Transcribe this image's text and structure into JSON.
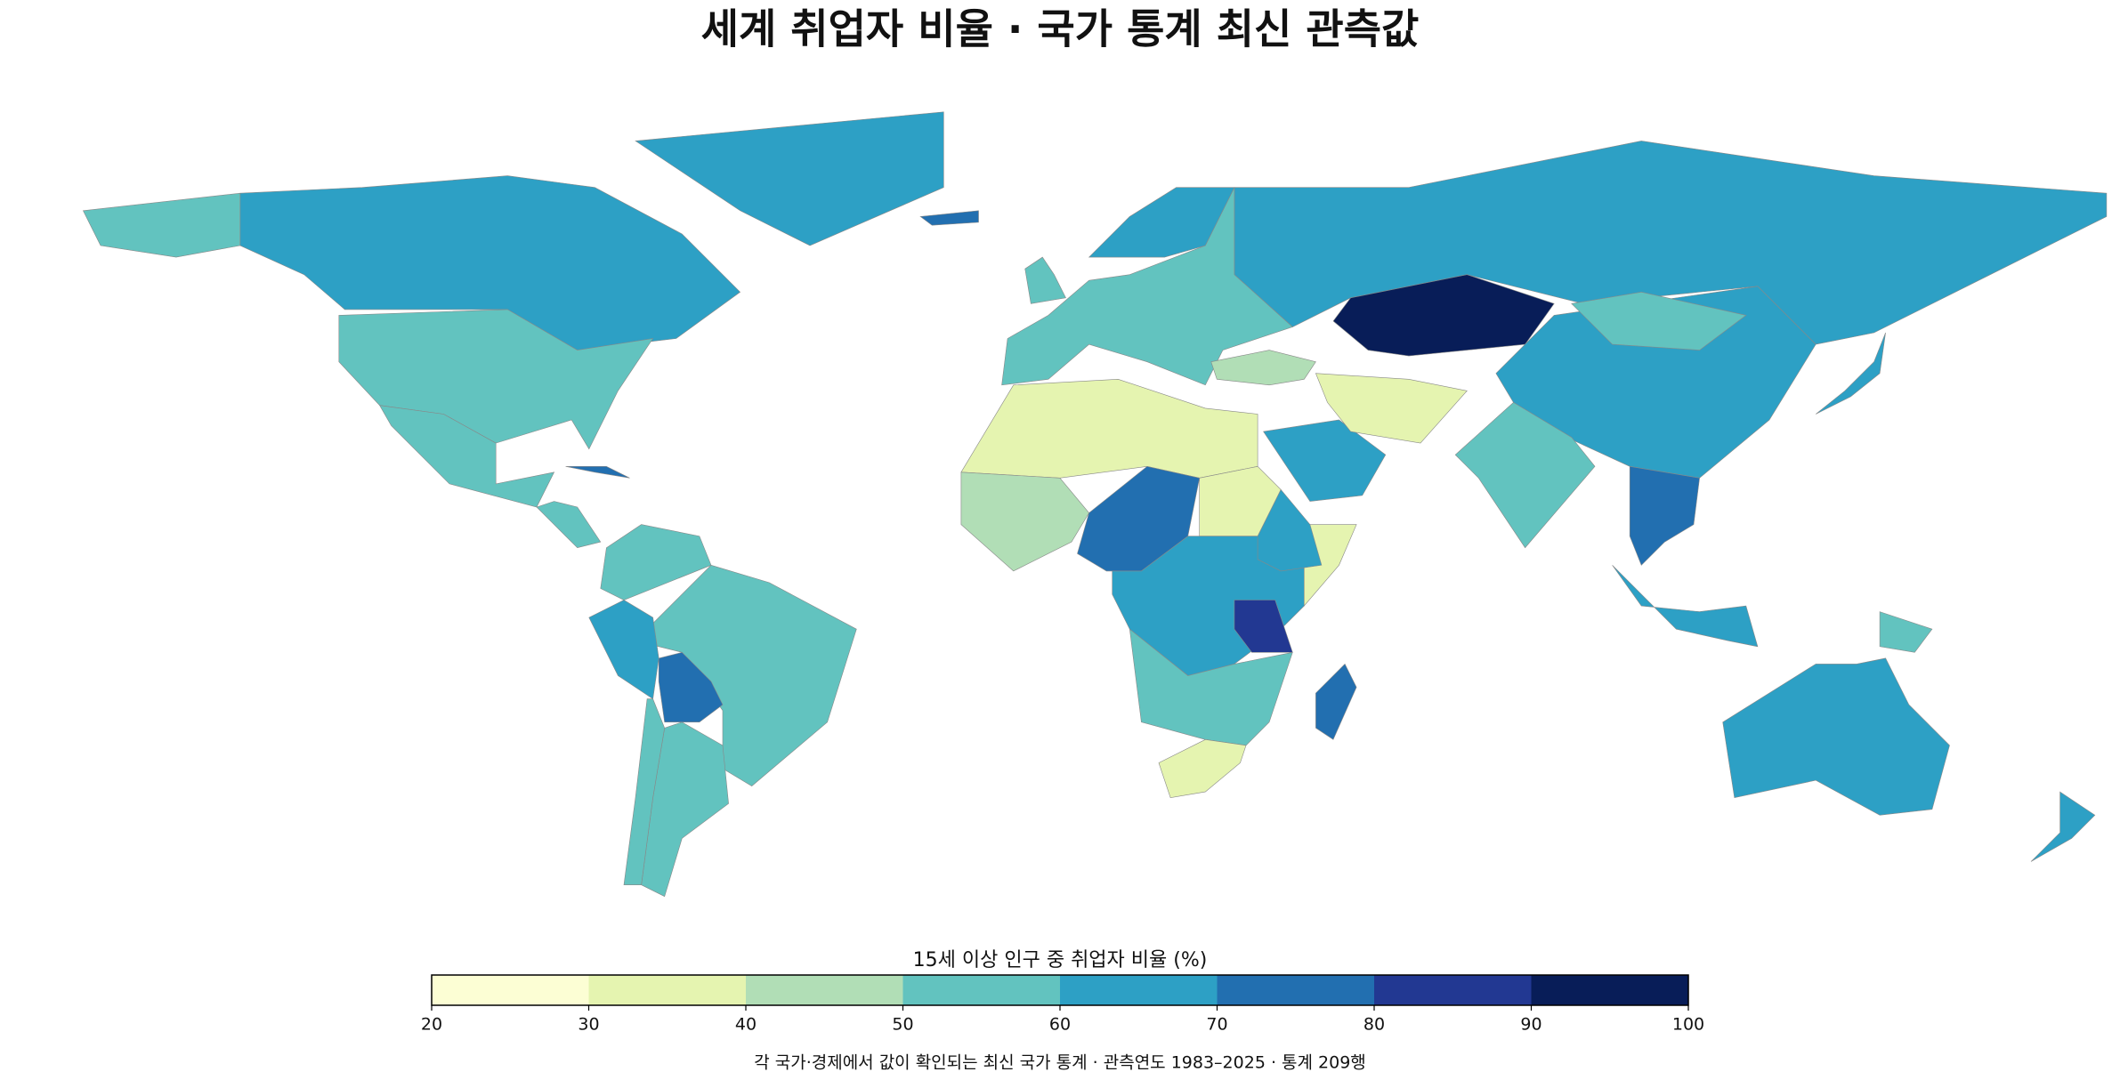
{
  "chart_data": {
    "type": "choropleth",
    "title": "세계 취업자 비율 · 국가 통계 최신 관측값",
    "values": [
      62,
      59,
      58,
      65,
      57,
      56,
      72,
      68,
      55,
      55,
      61,
      92,
      67,
      55,
      52,
      62,
      38,
      35,
      36,
      48,
      74,
      64,
      84,
      56,
      38,
      76,
      55,
      66,
      59,
      72,
      63,
      63,
      61,
      47,
      68,
      76,
      55,
      58,
      72,
      33,
      65
    ],
    "colorbar": {
      "label": "15세 이상 인구 중 취업자 비율 (%)",
      "ticks": [
        20,
        30,
        40,
        50,
        60,
        70,
        80,
        90,
        100
      ],
      "colors": [
        "#fcfed4",
        "#e5f4b0",
        "#b1deb6",
        "#62c3bf",
        "#2da0c5",
        "#226fb0",
        "#223892",
        "#081d58"
      ]
    },
    "note": "각 국가·경제에서 값이 확인되는 최신 국가 통계 · 관측연도 1983–2025 · 통계 209행"
  }
}
